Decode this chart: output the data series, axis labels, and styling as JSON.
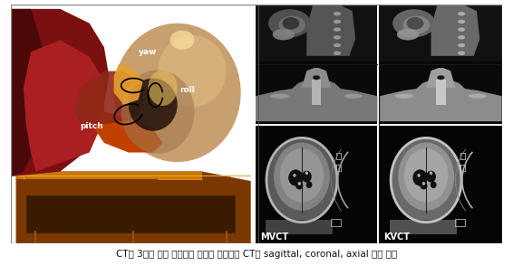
{
  "figure_width": 5.66,
  "figure_height": 3.04,
  "dpi": 100,
  "bg_color": "#ffffff",
  "caption": "CT의 3차원 볼륨 렌더링한 영상과 비교대상 CT의 sagittal, coronal, axial 단층 영상",
  "caption_fontsize": 7.5,
  "label_mvct": "MVCT",
  "label_kvct": "KVCT",
  "label_yaw": "yaw",
  "label_roll": "roll",
  "label_pitch": "pitch",
  "left_bg": "#000000",
  "right_bg": "#000000",
  "panel_border": "#888888"
}
